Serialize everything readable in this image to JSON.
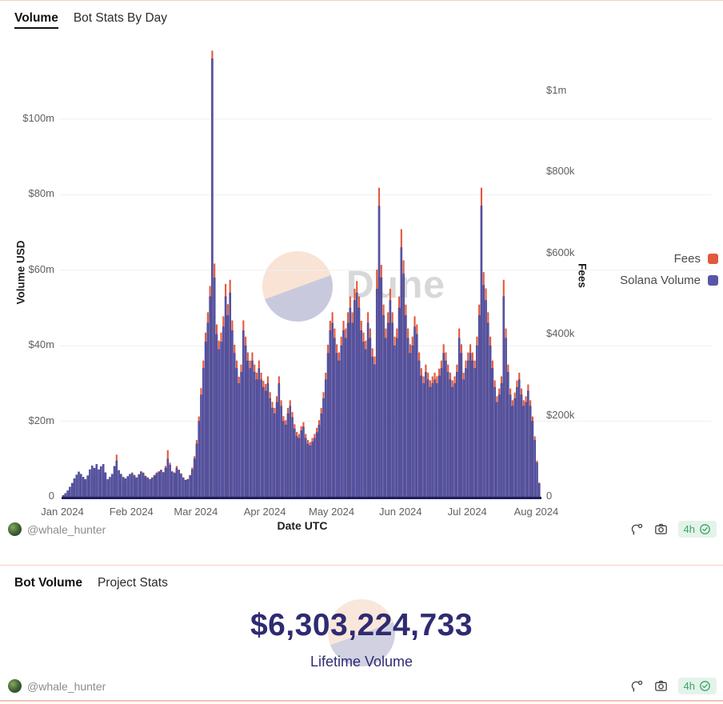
{
  "watermark": {
    "text": "Dune"
  },
  "colors": {
    "fees_orange": "#e2593d",
    "volume_indigo": "#5956a8",
    "volume_indigo_edge": "#38357e",
    "axis_line": "#211d5e",
    "gridline": "#efefef",
    "counter_navy": "#2e2b72",
    "panel_border": "#f7d0bf",
    "badge_bg": "#e4f3e9",
    "badge_green": "#3aa46a",
    "watermark_peach": "#f8e3d5",
    "watermark_lavender": "#c9c9dd"
  },
  "card1": {
    "tab": "Volume",
    "title": "Bot Stats By Day",
    "footer": {
      "author": "@whale_hunter",
      "refresh": "4h"
    }
  },
  "card2": {
    "tab": "Bot Volume",
    "title": "Project Stats",
    "counter": "$6,303,224,733",
    "counter_label": "Lifetime Volume",
    "footer": {
      "author": "@whale_hunter",
      "refresh": "4h"
    }
  },
  "chart_data": {
    "type": "bar",
    "title": "Bot Stats By Day",
    "x_axis": {
      "label": "Date UTC",
      "tick_labels": [
        "Jan 2024",
        "Feb 2024",
        "Mar 2024",
        "Apr 2024",
        "May 2024",
        "Jun 2024",
        "Jul 2024",
        "Aug 2024"
      ]
    },
    "y_left": {
      "label": "Volume USD",
      "tick_labels": [
        "$100m",
        "$80m",
        "$60m",
        "$40m",
        "$20m",
        "0"
      ],
      "tick_values_m": [
        100,
        80,
        60,
        40,
        20,
        0
      ],
      "range_m": [
        0,
        120
      ]
    },
    "y_right": {
      "label": "Fees",
      "tick_labels": [
        "$1m",
        "$800k",
        "$600k",
        "$400k",
        "$200k",
        "0"
      ],
      "tick_values_k": [
        1000,
        800,
        600,
        400,
        200,
        0
      ],
      "range_k": [
        0,
        1180
      ]
    },
    "grid": "horizontal-light",
    "legend_position": "right",
    "months": [
      "Jan 2024",
      "Feb 2024",
      "Mar 2024",
      "Apr 2024",
      "May 2024",
      "Jun 2024",
      "Jul 2024",
      "Aug 2024"
    ],
    "month_day_counts": [
      31,
      29,
      31,
      30,
      31,
      30,
      31,
      2
    ],
    "series": [
      {
        "name": "Fees",
        "axis": "right",
        "unit": "USD thousands",
        "color": "#e2593d",
        "values_by_month": {
          "Jan 2024": [
            3,
            6,
            11,
            18,
            25,
            34,
            41,
            46,
            42,
            36,
            32,
            39,
            50,
            57,
            53,
            60,
            50,
            56,
            60,
            45,
            32,
            36,
            42,
            76,
            104,
            63,
            42,
            36,
            34,
            38,
            42
          ],
          "Feb 2024": [
            60,
            54,
            48,
            56,
            63,
            60,
            52,
            48,
            44,
            48,
            54,
            60,
            63,
            67,
            61,
            76,
            115,
            84,
            63,
            60,
            76,
            67,
            58,
            48,
            42,
            44,
            54,
            72,
            100
          ],
          "Mar 2024": [
            140,
            198,
            268,
            336,
            405,
            455,
            520,
            1100,
            575,
            425,
            385,
            405,
            445,
            525,
            475,
            535,
            435,
            375,
            336,
            296,
            326,
            435,
            395,
            356,
            336,
            356,
            326,
            306,
            336,
            306,
            286
          ],
          "Apr 2024": [
            278,
            297,
            258,
            234,
            219,
            248,
            297,
            238,
            199,
            189,
            219,
            238,
            209,
            179,
            160,
            155,
            174,
            184,
            155,
            140,
            135,
            145,
            155,
            170,
            189,
            219,
            258,
            306,
            375,
            434
          ],
          "May 2024": [
            455,
            415,
            376,
            356,
            395,
            434,
            415,
            455,
            494,
            455,
            513,
            532,
            494,
            434,
            405,
            385,
            455,
            415,
            366,
            346,
            560,
            762,
            572,
            474,
            415,
            455,
            513,
            455,
            395,
            415,
            494
          ],
          "Jun 2024": [
            660,
            583,
            474,
            415,
            376,
            395,
            445,
            425,
            356,
            317,
            297,
            326,
            306,
            287,
            297,
            306,
            297,
            316,
            336,
            376,
            356,
            326,
            306,
            287,
            297,
            326,
            415,
            376,
            306,
            336
          ],
          "Jul 2024": [
            356,
            376,
            356,
            336,
            395,
            474,
            762,
            554,
            514,
            455,
            395,
            336,
            287,
            248,
            267,
            297,
            535,
            415,
            326,
            267,
            238,
            257,
            287,
            306,
            267,
            238,
            248,
            277,
            238,
            198,
            149
          ],
          "Aug 2024": [
            89,
            35
          ]
        }
      },
      {
        "name": "Solana Volume",
        "axis": "left",
        "unit": "USD millions",
        "color": "#5956a8",
        "values_by_month": {
          "Jan 2024": [
            0.4,
            0.9,
            1.6,
            2.6,
            3.6,
            4.8,
            5.8,
            6.6,
            6.0,
            5.2,
            4.6,
            5.6,
            7.2,
            8.2,
            7.6,
            8.6,
            7.2,
            8.0,
            8.6,
            6.4,
            4.6,
            5.2,
            6.0,
            8.0,
            9.5,
            7.0,
            6.0,
            5.2,
            4.8,
            5.4,
            6.0
          ],
          "Feb 2024": [
            6.2,
            5.6,
            5.0,
            5.8,
            6.6,
            6.2,
            5.4,
            5.0,
            4.6,
            5.0,
            5.6,
            6.2,
            6.6,
            7.0,
            6.4,
            7.6,
            10.0,
            8.4,
            6.6,
            6.2,
            7.6,
            7.0,
            6.0,
            5.0,
            4.4,
            4.6,
            5.6,
            7.2,
            10.0
          ],
          "Mar 2024": [
            14,
            20,
            27,
            34,
            41,
            46,
            53,
            116,
            58,
            43,
            39,
            41,
            45,
            53,
            48,
            54,
            44,
            38,
            34,
            30,
            33,
            44,
            40,
            36,
            34,
            36,
            33,
            31,
            34,
            31,
            29
          ],
          "Apr 2024": [
            28,
            30,
            26,
            23.5,
            22,
            25,
            30,
            24,
            20,
            19,
            22,
            24,
            21,
            18,
            16,
            15.5,
            17.5,
            18.5,
            15.5,
            14,
            13.5,
            14.5,
            15.5,
            17,
            19,
            22,
            26,
            31,
            38,
            44
          ],
          "May 2024": [
            46,
            42,
            38,
            36,
            40,
            44,
            42,
            46,
            50,
            46,
            52,
            54,
            50,
            44,
            41,
            39,
            46,
            42,
            37,
            35,
            55,
            77,
            58,
            48,
            42,
            46,
            52,
            46,
            40,
            42,
            50
          ],
          "Jun 2024": [
            66,
            59,
            48,
            42,
            38,
            40,
            45,
            43,
            36,
            32,
            30,
            33,
            31,
            29,
            30,
            31,
            30,
            32,
            34,
            38,
            36,
            33,
            31,
            29,
            30,
            33,
            42,
            38,
            31,
            34
          ],
          "Jul 2024": [
            36,
            38,
            36,
            34,
            40,
            48,
            77,
            56,
            52,
            46,
            40,
            34,
            29,
            25,
            27,
            30,
            53,
            42,
            33,
            27,
            24,
            26,
            29,
            31,
            27,
            24,
            25,
            28,
            24,
            20,
            15
          ],
          "Aug 2024": [
            9,
            3.5
          ]
        }
      }
    ]
  }
}
